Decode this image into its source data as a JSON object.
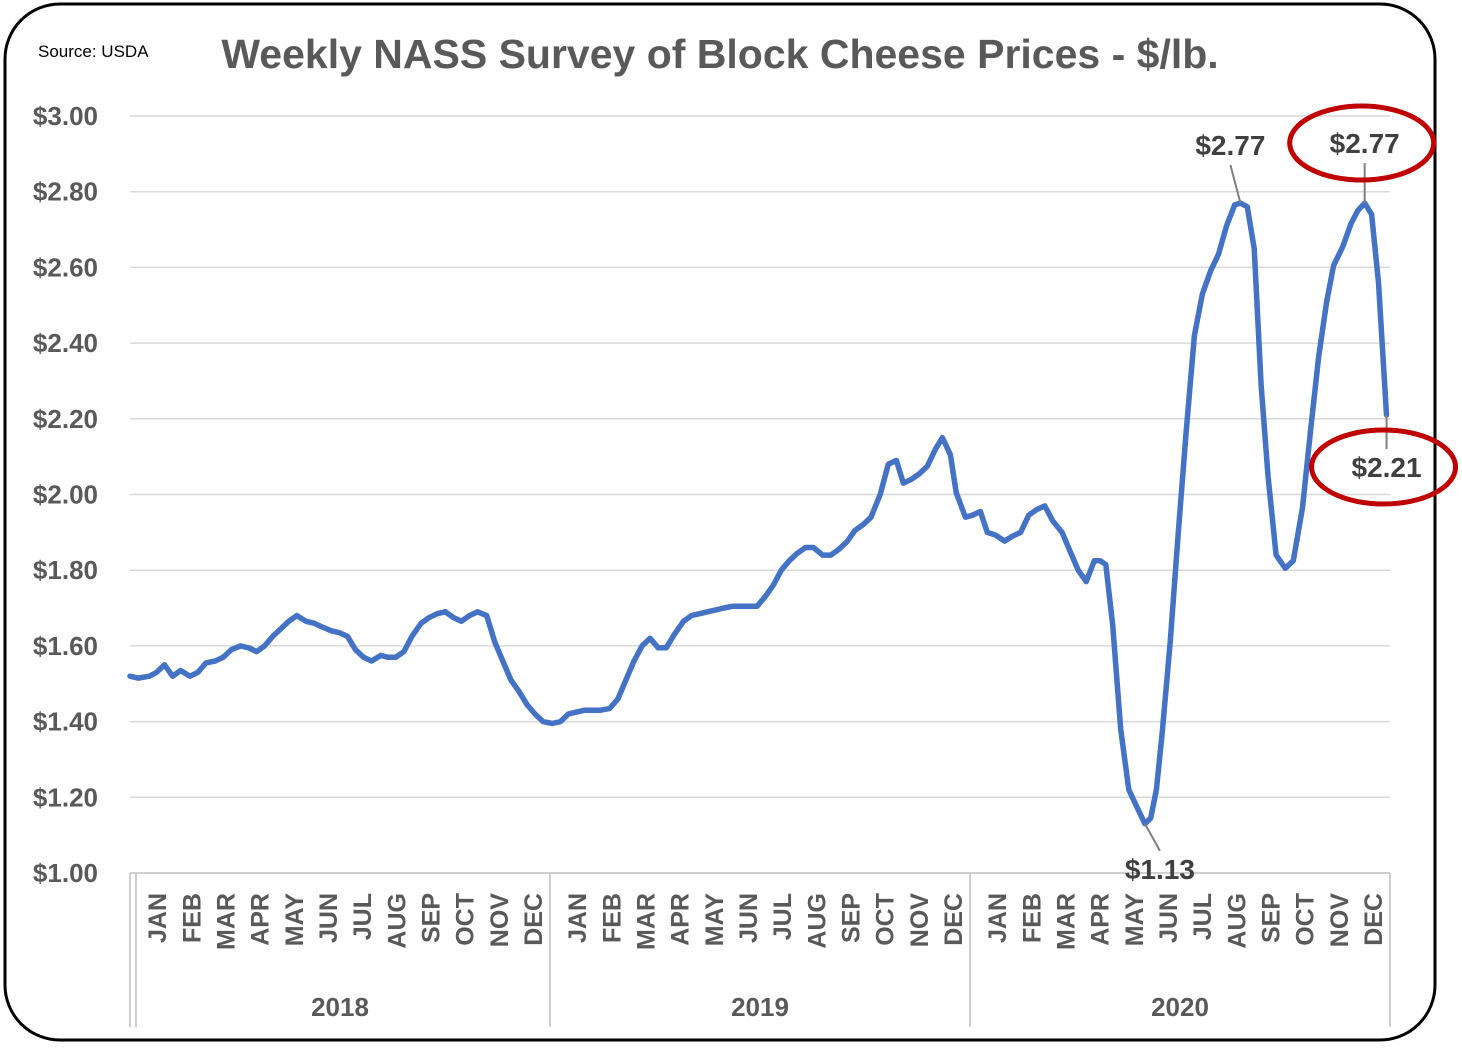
{
  "chart_data": {
    "type": "line",
    "title": "Weekly NASS Survey of Block Cheese Prices - $/lb.",
    "source_note": "Source: USDA",
    "xlabel": "",
    "ylabel": "",
    "ylim": [
      1.0,
      3.0
    ],
    "yticks": [
      "$1.00",
      "$1.20",
      "$1.40",
      "$1.60",
      "$1.80",
      "$2.00",
      "$2.20",
      "$2.40",
      "$2.60",
      "$2.80",
      "$3.00"
    ],
    "ytick_values": [
      1.0,
      1.2,
      1.4,
      1.6,
      1.8,
      2.0,
      2.2,
      2.4,
      2.6,
      2.8,
      3.0
    ],
    "grid": true,
    "legend": "none",
    "xlim": [
      "2018-01-01",
      "2020-12-31"
    ],
    "month_labels": [
      "JAN",
      "FEB",
      "MAR",
      "APR",
      "MAY",
      "JUN",
      "JUL",
      "AUG",
      "SEP",
      "OCT",
      "NOV",
      "DEC"
    ],
    "years": [
      "2018",
      "2019",
      "2020"
    ],
    "series": [
      {
        "color": "#4472C4",
        "points": [
          [
            "2018-01-01",
            1.52
          ],
          [
            "2018-01-08",
            1.515
          ],
          [
            "2018-01-18",
            1.52
          ],
          [
            "2018-01-24",
            1.53
          ],
          [
            "2018-01-31",
            1.55
          ],
          [
            "2018-02-07",
            1.52
          ],
          [
            "2018-02-14",
            1.535
          ],
          [
            "2018-02-22",
            1.52
          ],
          [
            "2018-03-01",
            1.53
          ],
          [
            "2018-03-08",
            1.555
          ],
          [
            "2018-03-16",
            1.56
          ],
          [
            "2018-03-23",
            1.57
          ],
          [
            "2018-03-30",
            1.59
          ],
          [
            "2018-04-07",
            1.6
          ],
          [
            "2018-04-14",
            1.595
          ],
          [
            "2018-04-21",
            1.585
          ],
          [
            "2018-04-28",
            1.6
          ],
          [
            "2018-05-05",
            1.625
          ],
          [
            "2018-05-12",
            1.645
          ],
          [
            "2018-05-19",
            1.665
          ],
          [
            "2018-05-26",
            1.68
          ],
          [
            "2018-06-03",
            1.665
          ],
          [
            "2018-06-10",
            1.66
          ],
          [
            "2018-06-17",
            1.65
          ],
          [
            "2018-06-25",
            1.64
          ],
          [
            "2018-07-02",
            1.635
          ],
          [
            "2018-07-09",
            1.625
          ],
          [
            "2018-07-16",
            1.59
          ],
          [
            "2018-07-23",
            1.57
          ],
          [
            "2018-07-30",
            1.56
          ],
          [
            "2018-08-07",
            1.575
          ],
          [
            "2018-08-13",
            1.57
          ],
          [
            "2018-08-20",
            1.57
          ],
          [
            "2018-08-27",
            1.585
          ],
          [
            "2018-09-03",
            1.625
          ],
          [
            "2018-09-11",
            1.66
          ],
          [
            "2018-09-18",
            1.675
          ],
          [
            "2018-09-25",
            1.685
          ],
          [
            "2018-10-02",
            1.69
          ],
          [
            "2018-10-09",
            1.675
          ],
          [
            "2018-10-16",
            1.665
          ],
          [
            "2018-10-23",
            1.68
          ],
          [
            "2018-10-30",
            1.69
          ],
          [
            "2018-11-07",
            1.68
          ],
          [
            "2018-11-14",
            1.61
          ],
          [
            "2018-11-21",
            1.56
          ],
          [
            "2018-11-28",
            1.51
          ],
          [
            "2018-12-05",
            1.48
          ],
          [
            "2018-12-12",
            1.445
          ],
          [
            "2018-12-19",
            1.42
          ],
          [
            "2018-12-26",
            1.4
          ],
          [
            "2019-01-03",
            1.395
          ],
          [
            "2019-01-10",
            1.4
          ],
          [
            "2019-01-17",
            1.42
          ],
          [
            "2019-01-24",
            1.425
          ],
          [
            "2019-01-31",
            1.43
          ],
          [
            "2019-02-07",
            1.43
          ],
          [
            "2019-02-14",
            1.43
          ],
          [
            "2019-02-22",
            1.435
          ],
          [
            "2019-03-01",
            1.46
          ],
          [
            "2019-03-08",
            1.51
          ],
          [
            "2019-03-15",
            1.56
          ],
          [
            "2019-03-22",
            1.6
          ],
          [
            "2019-03-29",
            1.62
          ],
          [
            "2019-04-05",
            1.595
          ],
          [
            "2019-04-12",
            1.595
          ],
          [
            "2019-04-19",
            1.63
          ],
          [
            "2019-04-27",
            1.665
          ],
          [
            "2019-05-04",
            1.68
          ],
          [
            "2019-05-11",
            1.685
          ],
          [
            "2019-05-18",
            1.69
          ],
          [
            "2019-05-25",
            1.695
          ],
          [
            "2019-06-01",
            1.7
          ],
          [
            "2019-06-09",
            1.705
          ],
          [
            "2019-06-16",
            1.705
          ],
          [
            "2019-06-23",
            1.705
          ],
          [
            "2019-06-30",
            1.705
          ],
          [
            "2019-07-07",
            1.73
          ],
          [
            "2019-07-14",
            1.76
          ],
          [
            "2019-07-21",
            1.8
          ],
          [
            "2019-07-28",
            1.825
          ],
          [
            "2019-08-04",
            1.845
          ],
          [
            "2019-08-11",
            1.86
          ],
          [
            "2019-08-18",
            1.86
          ],
          [
            "2019-08-26",
            1.84
          ],
          [
            "2019-09-02",
            1.84
          ],
          [
            "2019-09-09",
            1.855
          ],
          [
            "2019-09-16",
            1.875
          ],
          [
            "2019-09-23",
            1.905
          ],
          [
            "2019-09-30",
            1.92
          ],
          [
            "2019-10-07",
            1.94
          ],
          [
            "2019-10-15",
            2.0
          ],
          [
            "2019-10-22",
            2.08
          ],
          [
            "2019-10-29",
            2.09
          ],
          [
            "2019-11-04",
            2.03
          ],
          [
            "2019-11-11",
            2.04
          ],
          [
            "2019-11-18",
            2.055
          ],
          [
            "2019-11-25",
            2.075
          ],
          [
            "2019-12-02",
            2.12
          ],
          [
            "2019-12-08",
            2.15
          ],
          [
            "2019-12-15",
            2.105
          ],
          [
            "2019-12-20",
            2.005
          ],
          [
            "2019-12-28",
            1.94
          ],
          [
            "2020-01-03",
            1.945
          ],
          [
            "2020-01-10",
            1.955
          ],
          [
            "2020-01-16",
            1.9
          ],
          [
            "2020-01-23",
            1.893
          ],
          [
            "2020-01-31",
            1.877
          ],
          [
            "2020-02-07",
            1.89
          ],
          [
            "2020-02-14",
            1.9
          ],
          [
            "2020-02-21",
            1.945
          ],
          [
            "2020-02-28",
            1.96
          ],
          [
            "2020-03-06",
            1.97
          ],
          [
            "2020-03-13",
            1.93
          ],
          [
            "2020-03-21",
            1.9
          ],
          [
            "2020-03-28",
            1.85
          ],
          [
            "2020-04-04",
            1.8
          ],
          [
            "2020-04-11",
            1.77
          ],
          [
            "2020-04-18",
            1.825
          ],
          [
            "2020-04-23",
            1.825
          ],
          [
            "2020-04-28",
            1.815
          ],
          [
            "2020-05-04",
            1.655
          ],
          [
            "2020-05-11",
            1.38
          ],
          [
            "2020-05-18",
            1.22
          ],
          [
            "2020-05-25",
            1.175
          ],
          [
            "2020-06-01",
            1.13
          ],
          [
            "2020-06-06",
            1.145
          ],
          [
            "2020-06-11",
            1.22
          ],
          [
            "2020-06-16",
            1.37
          ],
          [
            "2020-06-23",
            1.61
          ],
          [
            "2020-06-30",
            1.9
          ],
          [
            "2020-07-07",
            2.17
          ],
          [
            "2020-07-14",
            2.42
          ],
          [
            "2020-07-21",
            2.53
          ],
          [
            "2020-07-28",
            2.59
          ],
          [
            "2020-08-04",
            2.635
          ],
          [
            "2020-08-11",
            2.71
          ],
          [
            "2020-08-18",
            2.765
          ],
          [
            "2020-08-23",
            2.77
          ],
          [
            "2020-08-29",
            2.76
          ],
          [
            "2020-09-04",
            2.65
          ],
          [
            "2020-09-10",
            2.29
          ],
          [
            "2020-09-16",
            2.05
          ],
          [
            "2020-09-23",
            1.84
          ],
          [
            "2020-10-01",
            1.805
          ],
          [
            "2020-10-08",
            1.825
          ],
          [
            "2020-10-16",
            1.965
          ],
          [
            "2020-10-23",
            2.17
          ],
          [
            "2020-10-30",
            2.365
          ],
          [
            "2020-11-06",
            2.51
          ],
          [
            "2020-11-12",
            2.605
          ],
          [
            "2020-11-20",
            2.655
          ],
          [
            "2020-11-27",
            2.715
          ],
          [
            "2020-12-03",
            2.75
          ],
          [
            "2020-12-09",
            2.77
          ],
          [
            "2020-12-15",
            2.74
          ],
          [
            "2020-12-21",
            2.56
          ],
          [
            "2020-12-28",
            2.21
          ]
        ]
      }
    ],
    "annotations": [
      {
        "text": "$2.77",
        "date": "2020-08-23",
        "value": 2.77,
        "circled": false
      },
      {
        "text": "$2.77",
        "date": "2020-12-09",
        "value": 2.77,
        "circled": true
      },
      {
        "text": "$2.21",
        "date": "2020-12-28",
        "value": 2.21,
        "circled": true
      },
      {
        "text": "$1.13",
        "date": "2020-06-01",
        "value": 1.13,
        "circled": false
      }
    ],
    "circle_color": "#C00000"
  }
}
